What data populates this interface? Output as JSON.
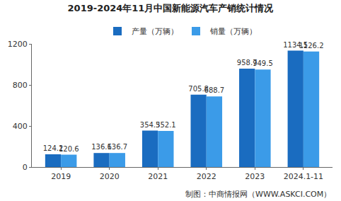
{
  "chart_data": {
    "type": "bar",
    "title": "2019-2024年11月中国新能源汽车产销统计情况",
    "categories": [
      "2019",
      "2020",
      "2021",
      "2022",
      "2023",
      "2024.1-11"
    ],
    "series": [
      {
        "name": "产量（万辆）",
        "color": "#1a6cc0",
        "values": [
          124.2,
          136.6,
          354.5,
          705.8,
          958.7,
          1134.5
        ]
      },
      {
        "name": "销量（万辆）",
        "color": "#3b9be8",
        "values": [
          120.6,
          136.7,
          352.1,
          688.7,
          949.5,
          1126.2
        ]
      }
    ],
    "ylim": [
      0,
      1200
    ],
    "yticks": [
      0,
      400,
      800,
      1200
    ],
    "grid": false,
    "legend": "top",
    "data_labels": true,
    "annotations": [
      "制图：中商情报网（WWW.ASKCI.COM）"
    ]
  }
}
